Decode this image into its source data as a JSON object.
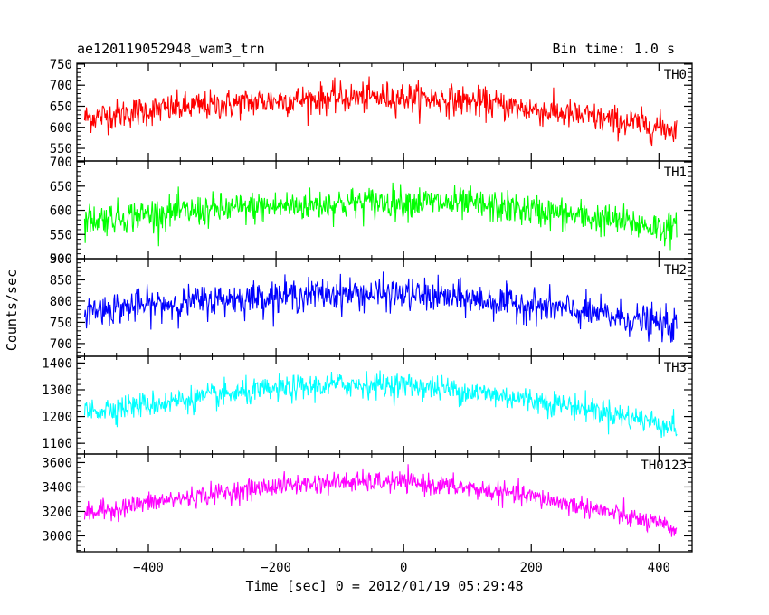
{
  "header": {
    "title": "ae120119052948_wam3_trn",
    "bin_time": "Bin time: 1.0 s"
  },
  "chart_data": {
    "type": "line",
    "xlabel": "Time [sec] 0 = 2012/01/19 05:29:48",
    "ylabel": "Counts/sec",
    "xlim": [
      -512,
      452
    ],
    "x_ticks": [
      -400,
      -200,
      0,
      200,
      400
    ],
    "x_tick_labels": [
      "−400",
      "−200",
      "0",
      "200",
      "400"
    ],
    "x_range_data": [
      -500,
      428
    ],
    "bin_seconds": 1.0,
    "grid": false,
    "panels": [
      {
        "name": "TH0",
        "color": "#ff0000",
        "ylim": [
          520,
          752
        ],
        "yticks": [
          550,
          600,
          650,
          700,
          750
        ],
        "trend": {
          "x": [
            -500,
            -400,
            -300,
            -200,
            -100,
            0,
            100,
            200,
            300,
            400,
            428
          ],
          "y": [
            622,
            640,
            652,
            663,
            670,
            672,
            662,
            643,
            622,
            600,
            595
          ]
        },
        "noise_amplitude": 30
      },
      {
        "name": "TH1",
        "color": "#00ff00",
        "ylim": [
          500,
          702
        ],
        "yticks": [
          500,
          550,
          600,
          650,
          700
        ],
        "trend": {
          "x": [
            -500,
            -400,
            -300,
            -200,
            -100,
            0,
            100,
            200,
            300,
            400,
            428
          ],
          "y": [
            580,
            592,
            600,
            608,
            614,
            618,
            612,
            600,
            584,
            565,
            560
          ]
        },
        "noise_amplitude": 28
      },
      {
        "name": "TH2",
        "color": "#0000ff",
        "ylim": [
          670,
          900
        ],
        "yticks": [
          700,
          750,
          800,
          850,
          900
        ],
        "trend": {
          "x": [
            -500,
            -400,
            -300,
            -200,
            -100,
            0,
            100,
            200,
            300,
            400,
            428
          ],
          "y": [
            778,
            790,
            802,
            812,
            818,
            816,
            805,
            790,
            770,
            748,
            740
          ]
        },
        "noise_amplitude": 32
      },
      {
        "name": "TH3",
        "color": "#00ffff",
        "ylim": [
          1060,
          1425
        ],
        "yticks": [
          1100,
          1200,
          1300,
          1400
        ],
        "trend": {
          "x": [
            -500,
            -400,
            -300,
            -200,
            -100,
            0,
            100,
            200,
            300,
            400,
            428
          ],
          "y": [
            1220,
            1245,
            1275,
            1300,
            1320,
            1318,
            1295,
            1262,
            1225,
            1175,
            1160
          ]
        },
        "noise_amplitude": 40
      },
      {
        "name": "TH0123",
        "color": "#ff00ff",
        "ylim": [
          2870,
          3670
        ],
        "yticks": [
          3000,
          3200,
          3400,
          3600
        ],
        "trend": {
          "x": [
            -500,
            -400,
            -300,
            -200,
            -100,
            0,
            100,
            200,
            300,
            400,
            428
          ],
          "y": [
            3180,
            3270,
            3340,
            3410,
            3440,
            3440,
            3390,
            3320,
            3220,
            3090,
            3050
          ]
        },
        "noise_amplitude": 70
      }
    ]
  }
}
